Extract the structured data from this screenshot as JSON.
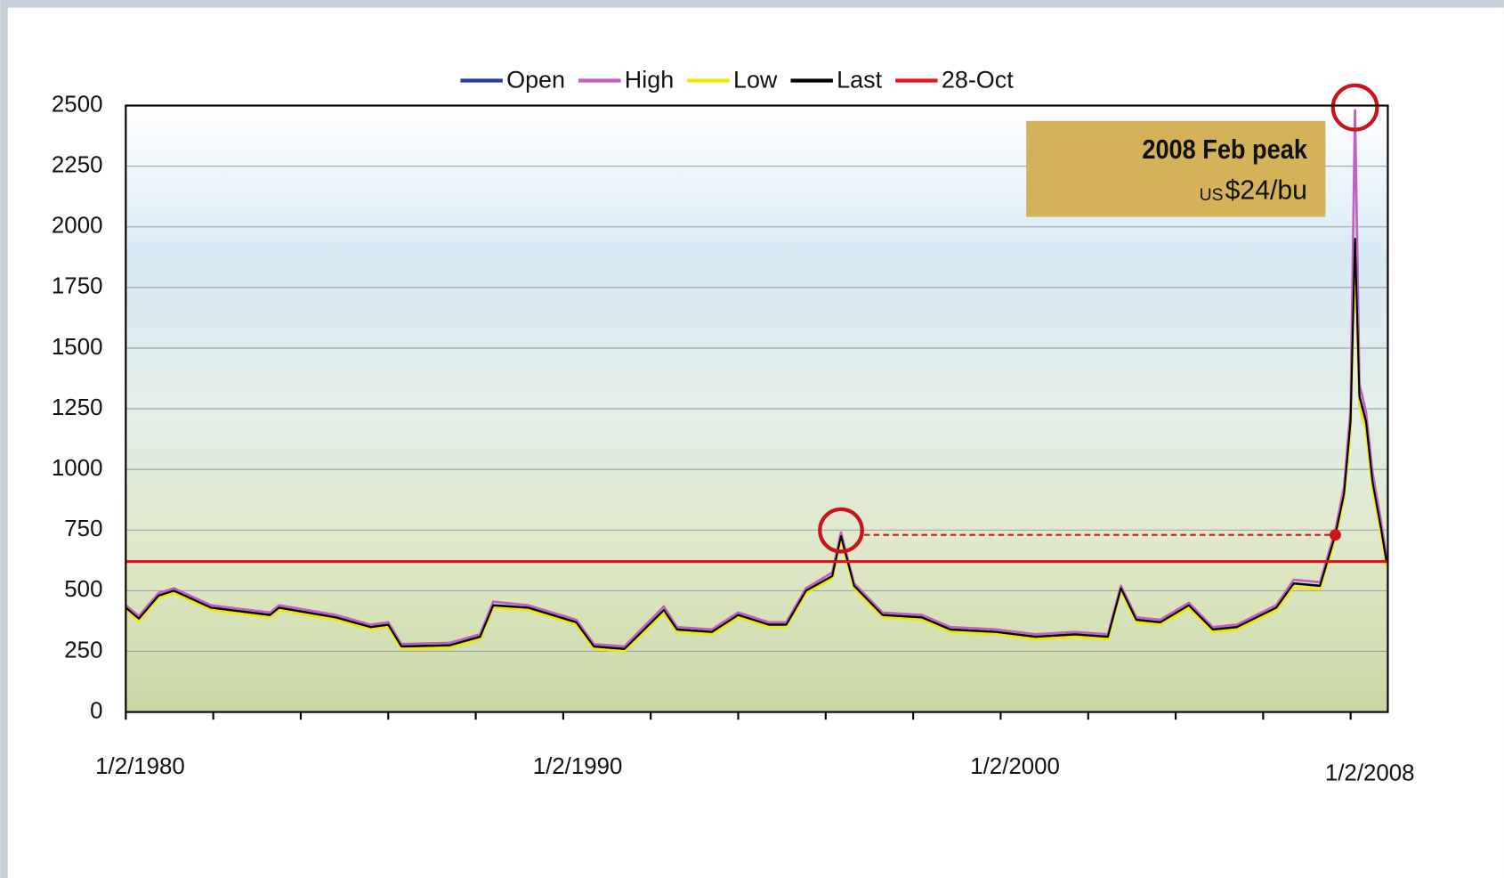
{
  "chart_data": {
    "type": "line",
    "x": [
      1980.0,
      1980.3,
      1980.75,
      1981.1,
      1981.95,
      1983.3,
      1983.5,
      1984.8,
      1985.6,
      1986.0,
      1986.3,
      1987.4,
      1988.1,
      1988.4,
      1989.2,
      1990.3,
      1990.7,
      1991.4,
      1992.3,
      1992.6,
      1993.4,
      1994.0,
      1994.7,
      1995.1,
      1995.55,
      1996.15,
      1996.35,
      1996.65,
      1997.3,
      1998.2,
      1998.85,
      1999.9,
      2000.8,
      2001.7,
      2002.45,
      2002.75,
      2003.1,
      2003.65,
      2004.3,
      2004.85,
      2005.4,
      2006.3,
      2006.7,
      2007.3,
      2007.65,
      2007.85,
      2008.0,
      2008.1,
      2008.2,
      2008.35,
      2008.5,
      2008.7,
      2008.82
    ],
    "series": [
      {
        "name": "Open",
        "color": "#2b3d9b",
        "values": [
          430,
          385,
          480,
          500,
          430,
          400,
          430,
          390,
          350,
          360,
          270,
          275,
          310,
          440,
          430,
          370,
          270,
          260,
          420,
          340,
          330,
          400,
          360,
          360,
          500,
          560,
          725,
          520,
          400,
          390,
          340,
          330,
          310,
          320,
          310,
          510,
          380,
          370,
          440,
          340,
          350,
          430,
          530,
          520,
          730,
          900,
          1200,
          1950,
          1300,
          1200,
          950,
          750,
          620
        ]
      },
      {
        "name": "High",
        "color": "#c060c0",
        "values": [
          440,
          395,
          490,
          510,
          440,
          410,
          440,
          400,
          360,
          370,
          280,
          285,
          320,
          455,
          440,
          380,
          280,
          270,
          435,
          350,
          340,
          410,
          370,
          370,
          510,
          575,
          740,
          530,
          410,
          400,
          350,
          340,
          320,
          330,
          320,
          520,
          390,
          380,
          450,
          350,
          360,
          440,
          545,
          535,
          750,
          930,
          1250,
          2480,
          1350,
          1240,
          990,
          780,
          640
        ]
      },
      {
        "name": "Low",
        "color": "#f0e800",
        "values": [
          420,
          375,
          470,
          490,
          420,
          390,
          420,
          380,
          340,
          350,
          260,
          265,
          300,
          430,
          420,
          360,
          260,
          250,
          410,
          330,
          320,
          390,
          350,
          350,
          490,
          550,
          710,
          510,
          390,
          380,
          330,
          320,
          300,
          310,
          300,
          500,
          370,
          360,
          430,
          330,
          340,
          420,
          515,
          505,
          715,
          880,
          1160,
          1900,
          1260,
          1160,
          920,
          730,
          600
        ]
      },
      {
        "name": "Last",
        "color": "#000000",
        "values": [
          430,
          385,
          480,
          500,
          430,
          400,
          430,
          390,
          350,
          360,
          270,
          275,
          310,
          440,
          430,
          370,
          270,
          260,
          420,
          340,
          330,
          400,
          360,
          360,
          500,
          560,
          725,
          520,
          400,
          390,
          340,
          330,
          310,
          320,
          310,
          510,
          380,
          370,
          440,
          340,
          350,
          430,
          530,
          520,
          730,
          900,
          1200,
          1950,
          1300,
          1200,
          950,
          750,
          620
        ]
      }
    ],
    "hline": {
      "name": "28-Oct",
      "value": 620,
      "color": "#e0141c"
    },
    "xlim": [
      1980,
      2008.85
    ],
    "xticks": [
      {
        "value": 1980,
        "label": "1/2/1980"
      },
      {
        "value": 1990,
        "label": "1/2/1990"
      },
      {
        "value": 2000,
        "label": "1/2/2000"
      },
      {
        "value": 2008,
        "label": "1/2/2008"
      }
    ],
    "xminor_ticks": [
      1982,
      1984,
      1986,
      1988,
      1992,
      1994,
      1996,
      1998,
      2002,
      2004,
      2006
    ],
    "ylim": [
      0,
      2500
    ],
    "yticks": [
      0,
      250,
      500,
      750,
      1000,
      1250,
      1500,
      1750,
      2000,
      2250,
      2500
    ],
    "grid": true,
    "annotation": {
      "title": "2008 Feb peak",
      "unit": "US",
      "price": "$24/bu"
    }
  }
}
